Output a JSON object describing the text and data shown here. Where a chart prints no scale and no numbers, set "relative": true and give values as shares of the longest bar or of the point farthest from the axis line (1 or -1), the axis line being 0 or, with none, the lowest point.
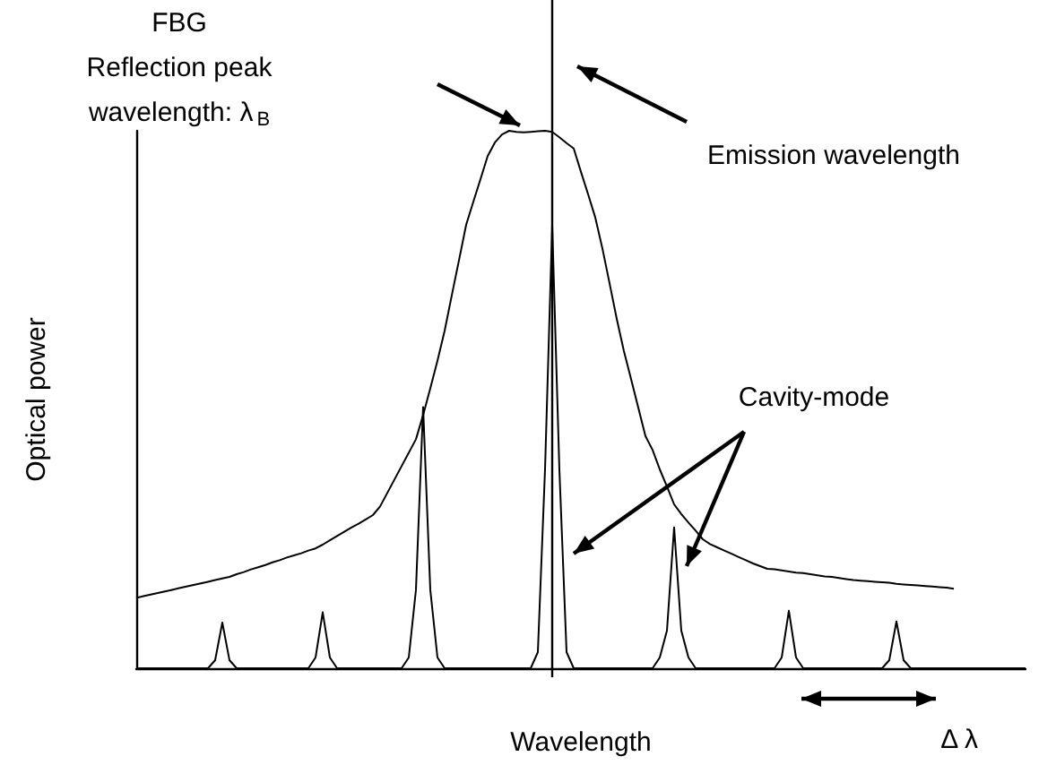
{
  "chart_data": {
    "type": "line",
    "relative": true,
    "xlabel": "Wavelength",
    "ylabel": "Optical power",
    "categories": [
      null,
      null,
      null,
      null,
      null,
      null,
      null,
      null,
      null,
      null,
      null,
      null,
      null,
      null,
      null,
      null,
      null,
      null,
      null,
      null,
      null,
      null,
      null,
      null,
      null,
      null,
      null,
      null,
      null,
      null,
      null,
      null,
      null,
      null,
      null,
      null,
      null,
      null,
      null,
      null,
      null,
      null,
      null,
      null,
      null,
      null,
      null,
      null,
      null,
      null,
      null,
      null,
      null,
      null,
      null,
      null,
      null,
      null,
      null,
      null,
      null,
      null,
      null,
      null,
      null,
      null,
      null,
      null,
      null,
      null,
      null,
      null,
      null,
      null,
      null,
      null,
      null,
      null,
      null,
      null,
      null,
      null,
      null,
      null,
      null,
      null,
      null,
      null,
      null,
      null,
      null,
      null,
      null,
      null,
      null,
      null,
      null,
      null,
      null,
      null,
      null,
      null,
      null,
      null,
      null,
      null,
      null,
      null,
      null,
      null,
      null,
      null,
      null,
      null,
      null,
      null,
      null,
      null,
      null,
      null,
      null,
      null,
      null,
      null,
      null
    ],
    "series": [
      {
        "color": "#000000",
        "values": [
          0.131,
          0.134,
          0.137,
          0.14,
          0.143,
          0.146,
          0.149,
          0.152,
          0.155,
          0.158,
          0.161,
          0.164,
          0.167,
          0.17,
          0.175,
          0.179,
          0.184,
          0.188,
          0.192,
          0.197,
          0.201,
          0.206,
          0.21,
          0.214,
          0.219,
          0.223,
          0.23,
          0.238,
          0.246,
          0.254,
          0.262,
          0.269,
          0.277,
          0.285,
          0.301,
          0.326,
          0.351,
          0.376,
          0.401,
          0.426,
          0.471,
          0.521,
          0.572,
          0.628,
          0.694,
          0.759,
          0.825,
          0.868,
          0.91,
          0.953,
          0.978,
          0.993,
          1.0,
          0.998,
          0.997,
          0.998,
          0.999,
          1.0,
          0.998,
          0.988,
          0.977,
          0.967,
          0.924,
          0.882,
          0.839,
          0.781,
          0.716,
          0.65,
          0.59,
          0.538,
          0.485,
          0.432,
          0.406,
          0.37,
          0.338,
          0.305,
          0.287,
          0.271,
          0.256,
          0.24,
          0.231,
          0.225,
          0.219,
          0.213,
          0.207,
          0.201,
          0.195,
          0.19,
          0.185,
          0.184,
          0.182,
          0.18,
          0.178,
          0.177,
          0.175,
          0.173,
          0.171,
          0.17,
          0.168,
          0.166,
          0.164,
          0.163,
          0.162,
          0.161,
          0.16,
          0.159,
          0.157,
          0.156,
          0.155,
          0.154,
          0.153,
          0.152,
          0.151,
          0.15,
          0.148,
          null,
          null,
          null,
          null,
          null,
          null,
          null,
          null,
          null,
          null
        ]
      },
      {
        "color": "#000000",
        "values": [
          0,
          0,
          0,
          0,
          0,
          0,
          0,
          0,
          0,
          0,
          0,
          0.015,
          0.085,
          0.015,
          0,
          0,
          0,
          0,
          0,
          0,
          0,
          0,
          0,
          0,
          0,
          0.02,
          0.104,
          0.02,
          0,
          0,
          0,
          0,
          0,
          0,
          0,
          0,
          0,
          0,
          0.02,
          0.146,
          0.486,
          0.146,
          0.02,
          0,
          0,
          0,
          0,
          0,
          0,
          0,
          0,
          0,
          0,
          0,
          0,
          0,
          0.03,
          0.37,
          0.825,
          0.37,
          0.03,
          0,
          0,
          0,
          0,
          0,
          0,
          0,
          0,
          0,
          0,
          0,
          0,
          0.02,
          0.07,
          0.262,
          0.07,
          0.02,
          0,
          0,
          0,
          0,
          0,
          0,
          0,
          0,
          0,
          0,
          0,
          0,
          0.02,
          0.107,
          0.02,
          0,
          0,
          0,
          0,
          0,
          0,
          0,
          0,
          0,
          0,
          0,
          0,
          0.015,
          0.087,
          0.015,
          0,
          0,
          0,
          0,
          0,
          0,
          0,
          0,
          0,
          0,
          0,
          0,
          0,
          0,
          0,
          0,
          0
        ]
      }
    ],
    "annotations": [
      "FBG",
      "Reflection peak",
      "wavelength: λ$_{B}$",
      "Emission wavelength",
      "Cavity-mode",
      "Δ λ"
    ]
  }
}
